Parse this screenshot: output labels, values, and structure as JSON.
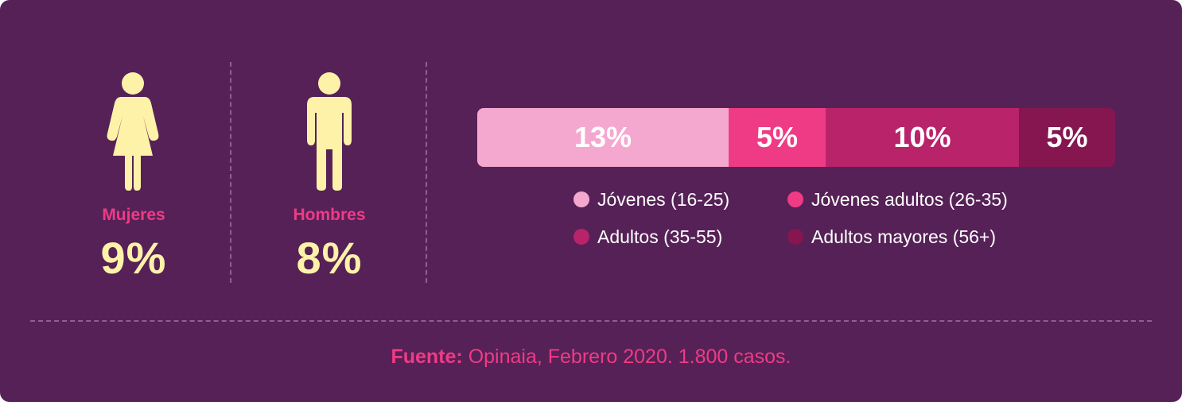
{
  "colors": {
    "background": "#562157",
    "accent_pink": "#ef3b85",
    "figure_yellow": "#fdf2a8",
    "seg_jovenes": "#f5a8cf",
    "seg_jovenes_adultos": "#ef3b85",
    "seg_adultos": "#b8236a",
    "seg_adultos_mayores": "#851650"
  },
  "gender": {
    "women": {
      "label": "Mujeres",
      "value": "9%",
      "icon": "woman-icon"
    },
    "men": {
      "label": "Hombres",
      "value": "8%",
      "icon": "man-icon"
    }
  },
  "chart_data": {
    "type": "bar",
    "orientation": "horizontal-stacked",
    "categories": [
      "Jóvenes (16-25)",
      "Jóvenes adultos (26-35)",
      "Adultos (35-55)",
      "Adultos mayores (56+)"
    ],
    "values": [
      13,
      5,
      10,
      5
    ],
    "labels": [
      "13%",
      "5%",
      "10%",
      "5%"
    ],
    "legend": [
      "Jóvenes (16-25)",
      "Jóvenes adultos (26-35)",
      "Adultos (35-55)",
      "Adultos mayores (56+)"
    ],
    "legend_placement": "below"
  },
  "source": {
    "label": "Fuente:",
    "text": " Opinaia, Febrero 2020. 1.800 casos."
  }
}
